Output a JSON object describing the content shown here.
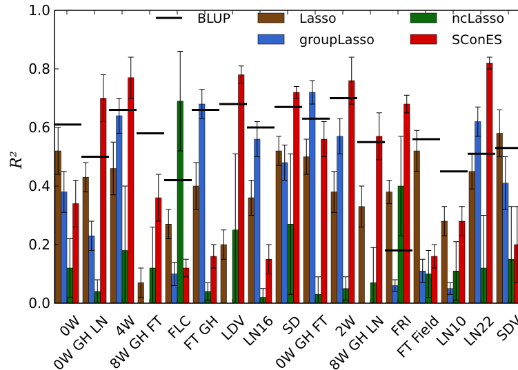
{
  "chart_data": {
    "type": "bar",
    "ylabel": "R²",
    "ylim": [
      0,
      1.0
    ],
    "yticks": [
      "0.0",
      "0.2",
      "0.4",
      "0.6",
      "0.8",
      "1.0"
    ],
    "grid": false,
    "legend_position": "top",
    "categories": [
      "0W",
      "0W GH LN",
      "4W",
      "8W GH FT",
      "FLC",
      "FT GH",
      "LDV",
      "LN16",
      "SD",
      "0W GH FT",
      "2W",
      "8W GH LN",
      "FRI",
      "FT Field",
      "LN10",
      "LN22",
      "SDV"
    ],
    "series": [
      {
        "name": "Lasso",
        "color": "#7a4410",
        "values": [
          0.52,
          0.43,
          0.46,
          0.07,
          0.27,
          0.4,
          0.2,
          0.36,
          0.52,
          0.5,
          0.38,
          0.33,
          0.38,
          0.52,
          0.28,
          0.45,
          0.58
        ],
        "errors": [
          0.08,
          0.05,
          0.09,
          0.05,
          0.05,
          0.08,
          0.05,
          0.06,
          0.05,
          0.06,
          0.07,
          0.07,
          0.04,
          0.07,
          0.05,
          0.06,
          0.08
        ]
      },
      {
        "name": "groupLasso",
        "color": "#3366cc",
        "values": [
          0.38,
          0.23,
          0.64,
          null,
          0.1,
          0.68,
          null,
          0.56,
          0.48,
          0.72,
          0.57,
          null,
          0.06,
          0.11,
          0.05,
          0.62,
          0.41
        ],
        "errors": [
          0.07,
          0.05,
          0.06,
          null,
          0.04,
          0.05,
          null,
          0.06,
          0.06,
          0.04,
          0.06,
          null,
          0.02,
          0.04,
          0.02,
          0.05,
          0.09
        ]
      },
      {
        "name": "ncLasso",
        "color": "#0b6b0b",
        "values": [
          0.12,
          0.04,
          0.18,
          0.12,
          0.69,
          0.04,
          0.25,
          0.02,
          0.27,
          0.03,
          0.05,
          0.07,
          0.4,
          0.1,
          0.11,
          0.12,
          0.15
        ],
        "errors": [
          0.1,
          0.04,
          0.22,
          0.14,
          0.17,
          0.03,
          0.26,
          0.03,
          0.24,
          0.06,
          0.04,
          0.12,
          0.17,
          0.08,
          0.1,
          0.18,
          0.18
        ]
      },
      {
        "name": "SConES",
        "color": "#d40000",
        "values": [
          0.34,
          0.7,
          0.77,
          0.36,
          0.12,
          0.16,
          0.78,
          0.15,
          0.72,
          0.56,
          0.76,
          0.57,
          0.68,
          0.16,
          0.28,
          0.82,
          0.2
        ],
        "errors": [
          0.08,
          0.08,
          0.07,
          0.08,
          0.03,
          0.04,
          0.03,
          0.05,
          0.02,
          0.06,
          0.08,
          0.08,
          0.03,
          0.04,
          0.05,
          0.02,
          0.13
        ]
      }
    ],
    "blup": {
      "name": "BLUP",
      "color": "#000000",
      "values": [
        0.61,
        0.5,
        0.66,
        0.58,
        0.42,
        0.66,
        0.68,
        0.6,
        0.67,
        0.63,
        0.7,
        0.55,
        0.18,
        0.56,
        0.45,
        0.51,
        0.53
      ]
    }
  }
}
